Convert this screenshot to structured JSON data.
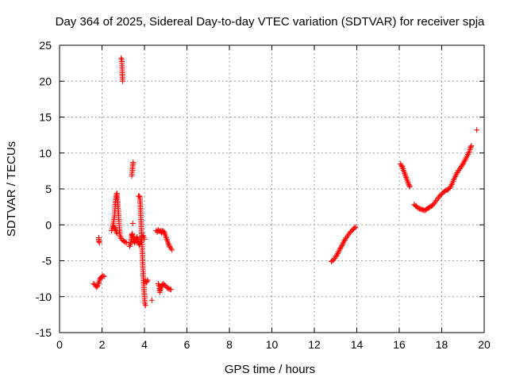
{
  "chart_data": {
    "type": "scatter",
    "title": "Day 364 of 2025, Sidereal Day-to-day VTEC variation (SDTVAR) for receiver spja",
    "xlabel": "GPS time / hours",
    "ylabel": "SDTVAR / TECUs",
    "xlim": [
      0,
      20
    ],
    "ylim": [
      -15,
      25
    ],
    "xticks": [
      0,
      2,
      4,
      6,
      8,
      10,
      12,
      14,
      16,
      18,
      20
    ],
    "yticks": [
      -15,
      -10,
      -5,
      0,
      5,
      10,
      15,
      20,
      25
    ],
    "grid": true,
    "marker": "+",
    "series_color": "#ff0000",
    "series": [
      {
        "name": "spja",
        "segments": [
          [
            [
              1.6,
              -8.2
            ],
            [
              1.65,
              -8.3
            ],
            [
              1.7,
              -8.5
            ],
            [
              1.75,
              -8.7
            ],
            [
              1.8,
              -8.4
            ],
            [
              1.85,
              -8.0
            ],
            [
              1.9,
              -7.6
            ],
            [
              1.95,
              -7.3
            ],
            [
              2.0,
              -7.2
            ],
            [
              2.05,
              -7.1
            ],
            [
              2.1,
              -7.2
            ]
          ],
          [
            [
              1.85,
              -1.8
            ],
            [
              1.85,
              -2.2
            ],
            [
              1.88,
              -2.5
            ]
          ],
          [
            [
              2.45,
              -0.8
            ],
            [
              2.5,
              -0.3
            ],
            [
              2.55,
              0.5
            ],
            [
              2.6,
              1.5
            ],
            [
              2.62,
              2.6
            ],
            [
              2.65,
              3.5
            ],
            [
              2.68,
              4.2
            ],
            [
              2.7,
              4.4
            ],
            [
              2.72,
              3.8
            ],
            [
              2.75,
              2.8
            ],
            [
              2.77,
              1.8
            ],
            [
              2.8,
              0.5
            ],
            [
              2.82,
              -0.6
            ],
            [
              2.85,
              -1.5
            ],
            [
              2.9,
              -1.9
            ],
            [
              2.95,
              -2.1
            ],
            [
              3.0,
              -2.2
            ],
            [
              3.05,
              -2.3
            ],
            [
              3.1,
              -2.4
            ],
            [
              3.15,
              -2.5
            ]
          ],
          [
            [
              2.55,
              -0.2
            ],
            [
              2.6,
              -0.5
            ],
            [
              2.65,
              -0.8
            ],
            [
              2.7,
              -1.2
            ]
          ],
          [
            [
              2.9,
              23.2
            ],
            [
              2.93,
              23.0
            ],
            [
              2.95,
              21.7
            ],
            [
              2.97,
              20.0
            ]
          ],
          [
            [
              3.3,
              -3.0
            ],
            [
              3.35,
              -2.6
            ],
            [
              3.38,
              -2.0
            ],
            [
              3.4,
              -1.5
            ],
            [
              3.42,
              -1.2
            ],
            [
              3.45,
              -1.8
            ],
            [
              3.5,
              -2.2
            ],
            [
              3.55,
              -2.5
            ],
            [
              3.6,
              -2.0
            ],
            [
              3.65,
              -1.7
            ],
            [
              3.7,
              -2.2
            ],
            [
              3.75,
              -2.8
            ],
            [
              3.8,
              -2.5
            ],
            [
              3.85,
              -2.0
            ],
            [
              3.9,
              -1.6
            ],
            [
              3.95,
              -1.5
            ],
            [
              4.0,
              -2.0
            ]
          ],
          [
            [
              3.4,
              6.8
            ],
            [
              3.43,
              7.6
            ],
            [
              3.45,
              8.3
            ],
            [
              3.47,
              8.7
            ]
          ],
          [
            [
              3.45,
              0.2
            ]
          ],
          [
            [
              3.72,
              4.0
            ],
            [
              3.75,
              4.0
            ],
            [
              3.78,
              3.9
            ],
            [
              3.8,
              3.0
            ],
            [
              3.82,
              1.8
            ],
            [
              3.84,
              0.5
            ],
            [
              3.86,
              -1.0
            ],
            [
              3.88,
              -2.5
            ],
            [
              3.9,
              -4.0
            ],
            [
              3.92,
              -5.5
            ],
            [
              3.94,
              -7.0
            ],
            [
              3.96,
              -8.0
            ],
            [
              3.98,
              -9.0
            ],
            [
              4.0,
              -10.0
            ],
            [
              4.02,
              -11.0
            ],
            [
              4.05,
              -11.2
            ]
          ],
          [
            [
              4.0,
              -8.0
            ],
            [
              4.05,
              -7.8
            ],
            [
              4.1,
              -8.0
            ],
            [
              4.15,
              -7.7
            ]
          ],
          [
            [
              4.35,
              -10.5
            ]
          ],
          [
            [
              4.55,
              -0.8
            ],
            [
              4.6,
              -1.0
            ],
            [
              4.65,
              -0.7
            ],
            [
              4.7,
              -0.9
            ],
            [
              4.75,
              -0.8
            ],
            [
              4.8,
              -1.1
            ],
            [
              4.85,
              -0.8
            ],
            [
              4.9,
              -0.9
            ],
            [
              4.95,
              -1.2
            ],
            [
              5.0,
              -1.6
            ],
            [
              5.05,
              -2.0
            ],
            [
              5.1,
              -2.4
            ],
            [
              5.15,
              -2.8
            ],
            [
              5.2,
              -3.1
            ],
            [
              5.25,
              -3.3
            ],
            [
              5.3,
              -3.5
            ]
          ],
          [
            [
              4.65,
              -8.2
            ],
            [
              4.7,
              -8.6
            ],
            [
              4.72,
              -9.4
            ],
            [
              4.75,
              -9.0
            ],
            [
              4.8,
              -8.6
            ],
            [
              4.85,
              -8.3
            ],
            [
              4.9,
              -8.2
            ],
            [
              4.95,
              -8.4
            ],
            [
              5.0,
              -8.5
            ],
            [
              5.05,
              -8.7
            ],
            [
              5.1,
              -8.8
            ],
            [
              5.15,
              -8.9
            ],
            [
              5.2,
              -9.0
            ],
            [
              5.25,
              -9.0
            ]
          ],
          [
            [
              12.8,
              -5.1
            ],
            [
              12.9,
              -4.9
            ],
            [
              13.0,
              -4.5
            ],
            [
              13.1,
              -4.0
            ],
            [
              13.2,
              -3.4
            ],
            [
              13.3,
              -2.9
            ],
            [
              13.4,
              -2.3
            ],
            [
              13.5,
              -1.8
            ],
            [
              13.6,
              -1.4
            ],
            [
              13.7,
              -1.0
            ],
            [
              13.8,
              -0.7
            ],
            [
              13.9,
              -0.4
            ],
            [
              13.95,
              -0.3
            ]
          ],
          [
            [
              16.05,
              8.5
            ],
            [
              16.1,
              8.3
            ],
            [
              16.15,
              8.0
            ],
            [
              16.2,
              7.6
            ],
            [
              16.25,
              7.2
            ],
            [
              16.3,
              6.8
            ],
            [
              16.35,
              6.4
            ],
            [
              16.4,
              6.0
            ],
            [
              16.45,
              5.6
            ],
            [
              16.5,
              5.3
            ]
          ],
          [
            [
              16.7,
              2.8
            ],
            [
              16.8,
              2.6
            ],
            [
              16.9,
              2.3
            ],
            [
              17.0,
              2.2
            ],
            [
              17.1,
              2.1
            ],
            [
              17.2,
              2.0
            ],
            [
              17.3,
              2.2
            ],
            [
              17.4,
              2.4
            ],
            [
              17.5,
              2.6
            ],
            [
              17.6,
              2.8
            ],
            [
              17.7,
              3.2
            ],
            [
              17.8,
              3.6
            ],
            [
              17.9,
              4.0
            ],
            [
              18.0,
              4.3
            ],
            [
              18.1,
              4.6
            ],
            [
              18.2,
              4.8
            ],
            [
              18.3,
              4.9
            ],
            [
              18.4,
              5.2
            ],
            [
              18.5,
              5.8
            ],
            [
              18.6,
              6.5
            ],
            [
              18.7,
              7.1
            ],
            [
              18.8,
              7.6
            ],
            [
              18.9,
              8.0
            ],
            [
              19.0,
              8.5
            ],
            [
              19.1,
              9.0
            ],
            [
              19.2,
              9.6
            ],
            [
              19.3,
              10.2
            ],
            [
              19.35,
              10.7
            ],
            [
              19.4,
              11.0
            ]
          ],
          [
            [
              19.65,
              13.2
            ]
          ]
        ]
      }
    ]
  }
}
